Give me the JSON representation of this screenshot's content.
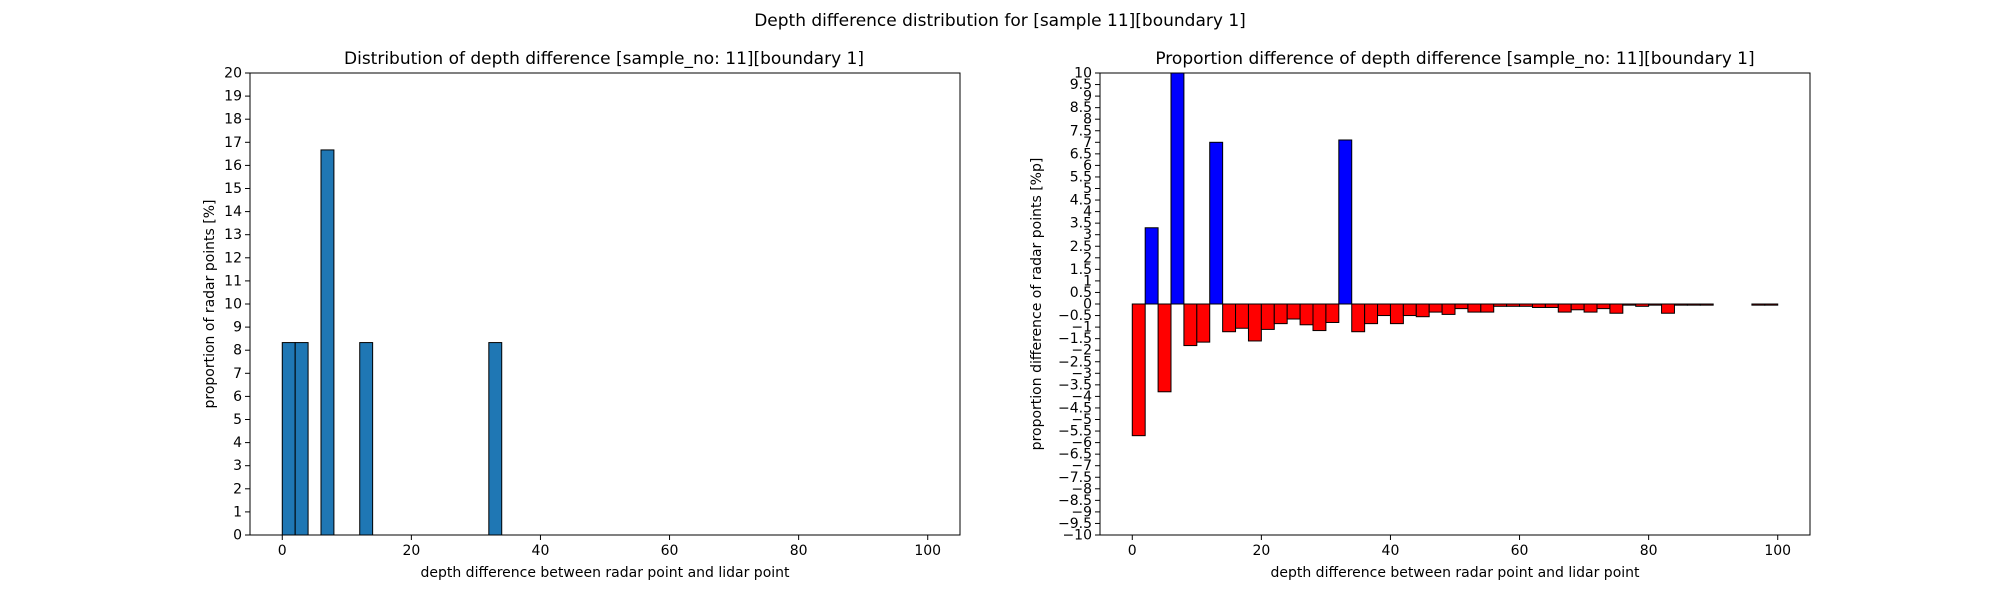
{
  "suptitle": "Depth difference distribution for [sample 11][boundary 1]",
  "chart_data": [
    {
      "type": "bar",
      "title": "Distribution of depth difference [sample_no: 11][boundary 1]",
      "xlabel": "depth difference between radar point and lidar point",
      "ylabel": "proportion of radar points [%]",
      "xlim": [
        -5,
        105
      ],
      "ylim": [
        0,
        20
      ],
      "xticks": [
        0,
        20,
        40,
        60,
        80,
        100
      ],
      "yticks": [
        0,
        1,
        2,
        3,
        4,
        5,
        6,
        7,
        8,
        9,
        10,
        11,
        12,
        13,
        14,
        15,
        16,
        17,
        18,
        19,
        20
      ],
      "bar_width": 2,
      "bar_color": "#1f77b4",
      "bars": [
        {
          "x": 1,
          "value": 8.33
        },
        {
          "x": 3,
          "value": 8.33
        },
        {
          "x": 7,
          "value": 16.67
        },
        {
          "x": 13,
          "value": 8.33
        },
        {
          "x": 33,
          "value": 8.33
        }
      ]
    },
    {
      "type": "bar",
      "title": "Proportion difference of depth difference [sample_no: 11][boundary 1]",
      "xlabel": "depth difference between radar point and lidar point",
      "ylabel": "proportion difference of radar points [%p]",
      "xlim": [
        -5,
        105
      ],
      "ylim": [
        -10,
        10
      ],
      "xticks": [
        0,
        20,
        40,
        60,
        80,
        100
      ],
      "yticks": [
        -10,
        -9.5,
        -9,
        -8.5,
        -8,
        -7.5,
        -7,
        -6.5,
        -6,
        -5.5,
        -5,
        -4.5,
        -4,
        -3.5,
        -3,
        -2.5,
        -2,
        -1.5,
        -1,
        -0.5,
        0,
        0.5,
        1,
        1.5,
        2,
        2.5,
        3,
        3.5,
        4,
        4.5,
        5,
        5.5,
        6,
        6.5,
        7,
        7.5,
        8,
        8.5,
        9,
        9.5,
        10
      ],
      "bar_width": 2,
      "positive_color": "#0000ff",
      "negative_color": "#ff0000",
      "bars": [
        {
          "x": 1,
          "value": -5.7
        },
        {
          "x": 3,
          "value": 3.3
        },
        {
          "x": 5,
          "value": -3.8
        },
        {
          "x": 7,
          "value": 10.2
        },
        {
          "x": 9,
          "value": -1.8
        },
        {
          "x": 11,
          "value": -1.65
        },
        {
          "x": 13,
          "value": 7.0
        },
        {
          "x": 15,
          "value": -1.2
        },
        {
          "x": 17,
          "value": -1.05
        },
        {
          "x": 19,
          "value": -1.6
        },
        {
          "x": 21,
          "value": -1.1
        },
        {
          "x": 23,
          "value": -0.85
        },
        {
          "x": 25,
          "value": -0.65
        },
        {
          "x": 27,
          "value": -0.9
        },
        {
          "x": 29,
          "value": -1.15
        },
        {
          "x": 31,
          "value": -0.8
        },
        {
          "x": 33,
          "value": 7.1
        },
        {
          "x": 35,
          "value": -1.2
        },
        {
          "x": 37,
          "value": -0.85
        },
        {
          "x": 39,
          "value": -0.5
        },
        {
          "x": 41,
          "value": -0.85
        },
        {
          "x": 43,
          "value": -0.5
        },
        {
          "x": 45,
          "value": -0.55
        },
        {
          "x": 47,
          "value": -0.35
        },
        {
          "x": 49,
          "value": -0.45
        },
        {
          "x": 51,
          "value": -0.2
        },
        {
          "x": 53,
          "value": -0.35
        },
        {
          "x": 55,
          "value": -0.35
        },
        {
          "x": 57,
          "value": -0.1
        },
        {
          "x": 59,
          "value": -0.1
        },
        {
          "x": 61,
          "value": -0.1
        },
        {
          "x": 63,
          "value": -0.15
        },
        {
          "x": 65,
          "value": -0.15
        },
        {
          "x": 67,
          "value": -0.35
        },
        {
          "x": 69,
          "value": -0.25
        },
        {
          "x": 71,
          "value": -0.35
        },
        {
          "x": 73,
          "value": -0.2
        },
        {
          "x": 75,
          "value": -0.4
        },
        {
          "x": 77,
          "value": -0.05
        },
        {
          "x": 79,
          "value": -0.1
        },
        {
          "x": 81,
          "value": -0.05
        },
        {
          "x": 83,
          "value": -0.4
        },
        {
          "x": 85,
          "value": -0.05
        },
        {
          "x": 87,
          "value": -0.05
        },
        {
          "x": 89,
          "value": -0.05
        },
        {
          "x": 97,
          "value": -0.05
        },
        {
          "x": 99,
          "value": -0.05
        }
      ]
    }
  ]
}
